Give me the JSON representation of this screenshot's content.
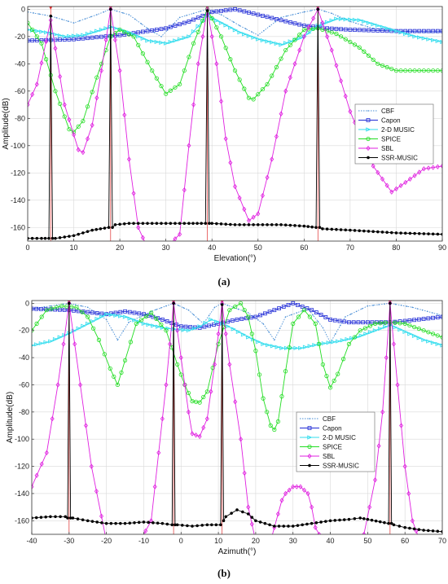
{
  "chart_data": [
    {
      "type": "line",
      "panel_label": "(a)",
      "xlabel": "Elevation(°)",
      "ylabel": "Amplitude(dB)",
      "xlim": [
        0,
        90
      ],
      "ylim": [
        -170,
        2
      ],
      "xticks": [
        0,
        10,
        20,
        30,
        40,
        50,
        60,
        70,
        80,
        90
      ],
      "yticks": [
        0,
        -20,
        -40,
        -60,
        -80,
        -100,
        -120,
        -140,
        -160
      ],
      "grid": true,
      "legend_position": "center-right",
      "truth_angles": [
        5,
        18,
        39,
        63
      ],
      "series": [
        {
          "name": "CBF",
          "color": "#4a8fd6",
          "marker": "dot",
          "style": "dotted",
          "x": [
            0,
            5,
            10,
            15,
            18,
            22,
            26,
            29,
            33,
            36,
            39,
            42,
            46,
            50,
            55,
            60,
            63,
            66,
            70,
            75,
            80,
            85,
            90
          ],
          "y": [
            -2,
            -5,
            -10,
            -4,
            0,
            -4,
            -14,
            -20,
            -6,
            -3,
            0,
            -4,
            -12,
            -19,
            -6,
            -2,
            0,
            -3,
            -9,
            -14,
            -16,
            -17,
            -17
          ]
        },
        {
          "name": "Capon",
          "color": "#1f2ad6",
          "marker": "square",
          "x": [
            0,
            10,
            20,
            30,
            35,
            40,
            45,
            50,
            55,
            60,
            65,
            70,
            80,
            90
          ],
          "y": [
            -23,
            -22,
            -19,
            -14,
            -9,
            -2,
            0,
            -4,
            -8,
            -12,
            -14,
            -15,
            -16,
            -16
          ]
        },
        {
          "name": "2-D MUSIC",
          "color": "#33ddee",
          "marker": "triangle",
          "x": [
            0,
            4,
            8,
            12,
            16,
            18,
            22,
            26,
            30,
            35,
            39,
            42,
            46,
            50,
            55,
            60,
            63,
            67,
            72,
            78,
            84,
            90
          ],
          "y": [
            -15,
            -17,
            -20,
            -19,
            -15,
            -13,
            -17,
            -23,
            -25,
            -20,
            -5,
            -10,
            -17,
            -22,
            -26,
            -20,
            -12,
            -7,
            -8,
            -14,
            -20,
            -24
          ]
        },
        {
          "name": "SPICE",
          "color": "#22dd22",
          "marker": "circle",
          "x": [
            0,
            3,
            6,
            9,
            10,
            12,
            15,
            18,
            20,
            23,
            27,
            30,
            33,
            36,
            39,
            42,
            45,
            48,
            49,
            52,
            56,
            60,
            63,
            67,
            72,
            76,
            80,
            85,
            90
          ],
          "y": [
            -10,
            -25,
            -60,
            -88,
            -90,
            -82,
            -50,
            -20,
            -15,
            -20,
            -45,
            -62,
            -55,
            -25,
            0,
            -20,
            -45,
            -65,
            -66,
            -55,
            -30,
            -15,
            -14,
            -18,
            -28,
            -40,
            -45,
            -45,
            -45
          ]
        },
        {
          "name": "SBL",
          "color": "#e020e0",
          "marker": "diamond",
          "x": [
            0,
            2,
            5,
            8,
            11,
            12,
            14,
            16,
            18,
            20,
            22,
            24,
            26,
            30,
            33,
            35,
            37,
            39,
            41,
            43,
            45,
            48,
            50,
            53,
            56,
            60,
            63,
            66,
            70,
            75,
            79,
            82,
            86,
            90
          ],
          "y": [
            -70,
            -55,
            -8,
            -70,
            -103,
            -105,
            -85,
            -45,
            0,
            -45,
            -110,
            -160,
            -175,
            -175,
            -165,
            -100,
            -40,
            0,
            -40,
            -95,
            -130,
            -155,
            -150,
            -110,
            -60,
            -20,
            0,
            -30,
            -75,
            -115,
            -134,
            -127,
            -117,
            -115
          ]
        },
        {
          "name": "SSR-MUSIC",
          "color": "#000000",
          "marker": "star",
          "x": [
            0,
            3,
            4.6,
            5,
            5.4,
            6,
            10,
            14,
            17.6,
            18,
            18.4,
            19,
            22,
            26,
            30,
            35,
            38.6,
            39,
            39.4,
            40,
            45,
            50,
            55,
            60,
            62.6,
            63,
            63.4,
            64,
            70,
            80,
            90
          ],
          "y": [
            -168,
            -168,
            -168,
            -5,
            -168,
            -168,
            -166,
            -162,
            -160,
            0,
            -160,
            -158,
            -157,
            -157,
            -157,
            -157,
            -157,
            -1,
            -157,
            -157,
            -158,
            -158,
            -158,
            -159,
            -160,
            0,
            -160,
            -161,
            -162,
            -164,
            -165
          ]
        }
      ]
    },
    {
      "type": "line",
      "panel_label": "(b)",
      "xlabel": "Azimuth(°)",
      "ylabel": "Amplitude(dB)",
      "xlim": [
        -40,
        70
      ],
      "ylim": [
        -170,
        2
      ],
      "xticks": [
        -40,
        -30,
        -20,
        -10,
        0,
        10,
        20,
        30,
        40,
        50,
        60,
        70
      ],
      "yticks": [
        0,
        -20,
        -40,
        -60,
        -80,
        -100,
        -120,
        -140,
        -160
      ],
      "grid": true,
      "legend_position": "center-right",
      "truth_angles": [
        -30,
        -2,
        11,
        56
      ],
      "series": [
        {
          "name": "CBF",
          "color": "#4a8fd6",
          "marker": "dot",
          "style": "dotted",
          "x": [
            -40,
            -35,
            -30,
            -25,
            -20,
            -17,
            -14,
            -8,
            -4,
            -2,
            2,
            6,
            9,
            11,
            14,
            18,
            22,
            25,
            28,
            34,
            38,
            40,
            44,
            50,
            56,
            62,
            66,
            70
          ],
          "y": [
            -4,
            -2,
            0,
            -3,
            -12,
            -27,
            -14,
            -6,
            -2,
            0,
            -5,
            -15,
            -3,
            0,
            -3,
            -7,
            -15,
            -27,
            -10,
            -4,
            -18,
            -29,
            -10,
            -2,
            0,
            -3,
            -6,
            -9
          ]
        },
        {
          "name": "Capon",
          "color": "#1f2ad6",
          "marker": "square",
          "x": [
            -40,
            -30,
            -20,
            -15,
            -10,
            -5,
            0,
            5,
            10,
            15,
            20,
            25,
            30,
            35,
            40,
            45,
            50,
            56,
            60,
            70
          ],
          "y": [
            -4,
            -5,
            -8,
            -6,
            -8,
            -12,
            -17,
            -18,
            -15,
            -12,
            -10,
            -5,
            0,
            -5,
            -12,
            -14,
            -14,
            -14,
            -13,
            -10
          ]
        },
        {
          "name": "2-D MUSIC",
          "color": "#33ddee",
          "marker": "triangle",
          "x": [
            -40,
            -35,
            -30,
            -25,
            -20,
            -15,
            -10,
            -5,
            -2,
            2,
            5,
            8,
            11,
            14,
            18,
            22,
            27,
            32,
            37,
            42,
            47,
            52,
            56,
            60,
            65,
            70
          ],
          "y": [
            -31,
            -28,
            -22,
            -15,
            -8,
            -10,
            -15,
            -18,
            -19,
            -20,
            -17,
            -12,
            -15,
            -19,
            -25,
            -30,
            -33,
            -33,
            -30,
            -28,
            -25,
            -20,
            -16,
            -21,
            -27,
            -31
          ]
        },
        {
          "name": "SPICE",
          "color": "#22dd22",
          "marker": "circle",
          "x": [
            -40,
            -36,
            -32,
            -28,
            -25,
            -22,
            -19,
            -17,
            -15,
            -12,
            -8,
            -4,
            -1,
            1,
            3,
            5,
            7,
            10,
            13,
            16,
            18,
            20,
            22,
            24,
            25,
            26,
            28,
            30,
            33,
            36,
            38,
            40,
            42,
            45,
            48,
            52,
            56,
            60,
            65,
            70
          ],
          "y": [
            -20,
            -5,
            -2,
            -3,
            -10,
            -27,
            -48,
            -60,
            -42,
            -15,
            -7,
            -20,
            -45,
            -60,
            -72,
            -73,
            -65,
            -30,
            -5,
            0,
            -10,
            -35,
            -70,
            -90,
            -93,
            -87,
            -50,
            -15,
            -5,
            -15,
            -45,
            -62,
            -52,
            -30,
            -20,
            -15,
            -14,
            -15,
            -20,
            -25
          ]
        },
        {
          "name": "SBL",
          "color": "#e020e0",
          "marker": "diamond",
          "x": [
            -40,
            -36,
            -33,
            -30,
            -27,
            -24,
            -20,
            -17,
            -14,
            -11,
            -8,
            -6,
            -4,
            -2,
            0,
            2,
            3,
            5,
            7,
            9,
            11,
            13,
            16,
            18,
            20,
            22,
            24,
            26,
            27,
            28,
            30,
            32,
            34,
            35,
            36,
            38,
            40,
            43,
            46,
            49,
            52,
            54,
            56,
            58,
            60,
            62,
            64,
            66,
            68,
            70
          ],
          "y": [
            -135,
            -110,
            -60,
            0,
            -60,
            -120,
            -175,
            -175,
            -175,
            -175,
            -160,
            -110,
            -60,
            0,
            -40,
            -80,
            -96,
            -98,
            -85,
            -45,
            0,
            -45,
            -100,
            -150,
            -175,
            -175,
            -175,
            -155,
            -145,
            -140,
            -135,
            -135,
            -140,
            -150,
            -165,
            -175,
            -175,
            -175,
            -175,
            -170,
            -130,
            -80,
            0,
            -60,
            -120,
            -160,
            -175,
            -175,
            -175,
            -175
          ]
        },
        {
          "name": "SSR-MUSIC",
          "color": "#000000",
          "marker": "star",
          "x": [
            -40,
            -35,
            -31,
            -30.4,
            -30,
            -29.6,
            -29,
            -25,
            -20,
            -15,
            -10,
            -5,
            -2.4,
            -2,
            -1.6,
            -1,
            3,
            7,
            10.6,
            11,
            11.4,
            12,
            15,
            18,
            20,
            25,
            30,
            35,
            40,
            45,
            48,
            50,
            55.6,
            56,
            56.4,
            57,
            60,
            65,
            70
          ],
          "y": [
            -158,
            -157,
            -157,
            -158,
            0,
            -158,
            -158,
            -160,
            -162,
            -162,
            -161,
            -162,
            -163,
            0,
            -163,
            -163,
            -164,
            -163,
            -163,
            -1,
            -160,
            -157,
            -152,
            -155,
            -160,
            -164,
            -164,
            -162,
            -160,
            -159,
            -158,
            -159,
            -162,
            0,
            -162,
            -163,
            -165,
            -167,
            -168
          ]
        }
      ]
    }
  ]
}
